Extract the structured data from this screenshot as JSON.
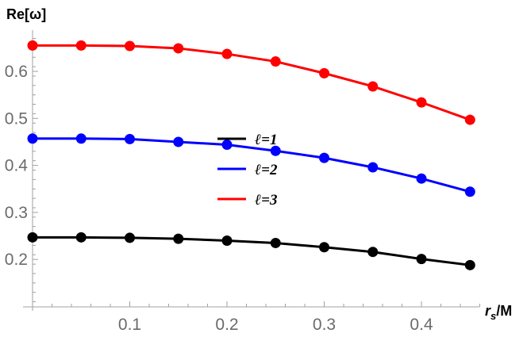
{
  "chart_data": {
    "type": "line",
    "title": "",
    "xlabel": "r_s/M",
    "ylabel": "Re[ω]",
    "xlim": [
      0,
      0.46
    ],
    "ylim": [
      0.1,
      0.685
    ],
    "grid": false,
    "legend_position": "inside-center",
    "x": [
      0,
      0.05,
      0.1,
      0.15,
      0.2,
      0.25,
      0.3,
      0.35,
      0.4,
      0.45
    ],
    "x_ticks": [
      0.1,
      0.2,
      0.3,
      0.4
    ],
    "y_ticks": [
      0.2,
      0.3,
      0.4,
      0.5,
      0.6
    ],
    "series": [
      {
        "name": "ℓ=1",
        "color": "#000000",
        "values": [
          0.247,
          0.247,
          0.246,
          0.244,
          0.24,
          0.235,
          0.226,
          0.216,
          0.201,
          0.188
        ]
      },
      {
        "name": "ℓ=2",
        "color": "#0000ff",
        "values": [
          0.457,
          0.457,
          0.456,
          0.45,
          0.444,
          0.431,
          0.416,
          0.396,
          0.372,
          0.344
        ]
      },
      {
        "name": "ℓ=3",
        "color": "#ff0000",
        "values": [
          0.655,
          0.655,
          0.654,
          0.649,
          0.637,
          0.621,
          0.596,
          0.568,
          0.534,
          0.497
        ]
      }
    ]
  },
  "axes": {
    "y_title": "Re[ω]",
    "x_title_main": "r",
    "x_title_sub": "s",
    "x_title_rest": "/M"
  },
  "legend": [
    {
      "label": "ℓ=1",
      "color": "#000000"
    },
    {
      "label": "ℓ=2",
      "color": "#0000ff"
    },
    {
      "label": "ℓ=3",
      "color": "#ff0000"
    }
  ]
}
